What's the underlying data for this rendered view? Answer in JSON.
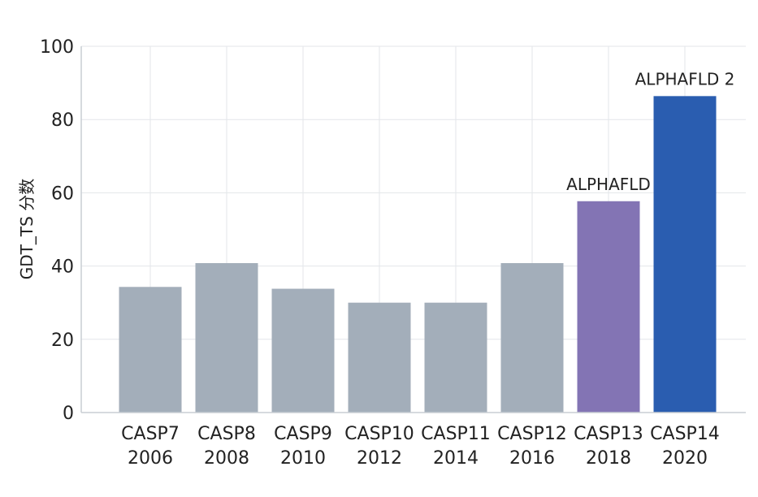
{
  "chart_data": {
    "type": "bar",
    "ylabel": "GDT_TS 分数",
    "xlabel": "",
    "title": "",
    "ylim": [
      0,
      100
    ],
    "yticks": [
      0,
      20,
      40,
      60,
      80,
      100
    ],
    "grid": true,
    "categories": [
      {
        "name": "CASP7",
        "year": "2006"
      },
      {
        "name": "CASP8",
        "year": "2008"
      },
      {
        "name": "CASP9",
        "year": "2010"
      },
      {
        "name": "CASP10",
        "year": "2012"
      },
      {
        "name": "CASP11",
        "year": "2014"
      },
      {
        "name": "CASP12",
        "year": "2016"
      },
      {
        "name": "CASP13",
        "year": "2018"
      },
      {
        "name": "CASP14",
        "year": "2020"
      }
    ],
    "values": [
      34.3,
      40.8,
      33.8,
      30,
      30,
      40.8,
      57.7,
      86.4
    ],
    "bar_colors": [
      "#a3aeba",
      "#a3aeba",
      "#a3aeba",
      "#a3aeba",
      "#a3aeba",
      "#a3aeba",
      "#8374b4",
      "#2a5db0"
    ],
    "annotations": [
      {
        "index": 6,
        "text": "ALPHAFLD"
      },
      {
        "index": 7,
        "text": "ALPHAFLD 2"
      }
    ],
    "colors": {
      "grid": "#e3e6ea",
      "axis": "#c8cdd3",
      "text": "#222222"
    }
  }
}
